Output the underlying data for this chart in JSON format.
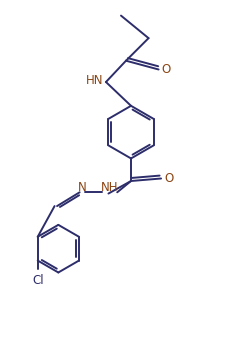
{
  "bond_color": "#2d2d6b",
  "atom_color_N": "#8B4513",
  "atom_color_O": "#8B4513",
  "atom_color_Cl": "#2d2d6b",
  "bg_color": "#ffffff",
  "line_width": 1.4,
  "font_size": 8.5,
  "fig_width": 2.52,
  "fig_height": 3.57,
  "xlim": [
    0,
    10
  ],
  "ylim": [
    0,
    14
  ]
}
